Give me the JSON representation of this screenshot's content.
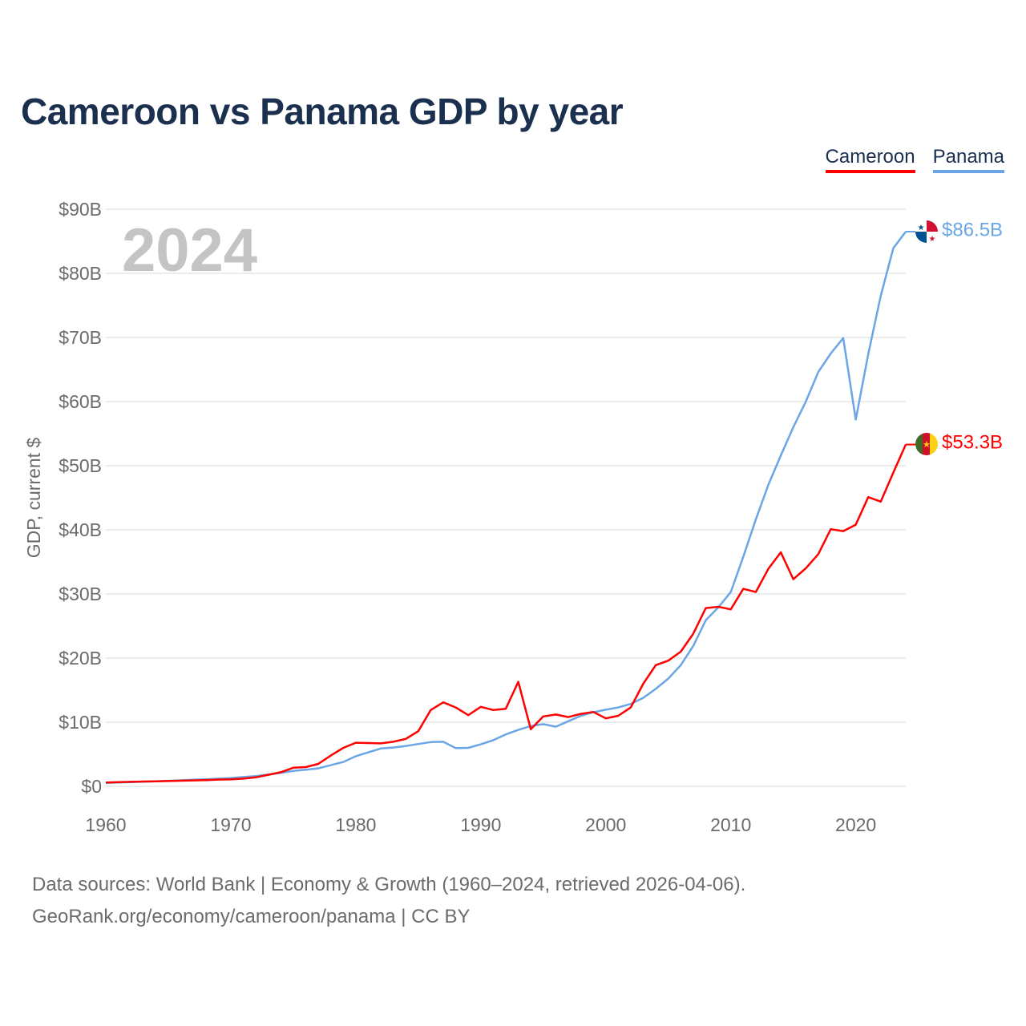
{
  "page": {
    "title": "Cameroon vs Panama GDP by year",
    "source_line1": "Data sources: World Bank | Economy & Growth (1960–2024, retrieved 2026-04-06).",
    "source_line2": "GeoRank.org/economy/cameroon/panama | CC BY"
  },
  "legend": [
    {
      "label": "Cameroon",
      "color": "#ff0000"
    },
    {
      "label": "Panama",
      "color": "#6aa6e6"
    }
  ],
  "chart_data": {
    "type": "line",
    "title": "Cameroon vs Panama GDP by year",
    "year_label": "2024",
    "xlabel": "",
    "ylabel": "GDP, current $",
    "xlim": [
      1960,
      2024
    ],
    "ylim": [
      0,
      90
    ],
    "x_ticks": [
      1960,
      1970,
      1980,
      1990,
      2000,
      2010,
      2020
    ],
    "x_tick_labels": [
      "1960",
      "1970",
      "1980",
      "1990",
      "2000",
      "2010",
      "2020"
    ],
    "y_ticks": [
      0,
      10,
      20,
      30,
      40,
      50,
      60,
      70,
      80,
      90
    ],
    "y_tick_labels": [
      "$0",
      "$10B",
      "$20B",
      "$30B",
      "$40B",
      "$50B",
      "$60B",
      "$70B",
      "$80B",
      "$90B"
    ],
    "units": "billions of current US$",
    "x": [
      1960,
      1961,
      1962,
      1963,
      1964,
      1965,
      1966,
      1967,
      1968,
      1969,
      1970,
      1971,
      1972,
      1973,
      1974,
      1975,
      1976,
      1977,
      1978,
      1979,
      1980,
      1981,
      1982,
      1983,
      1984,
      1985,
      1986,
      1987,
      1988,
      1989,
      1990,
      1991,
      1992,
      1993,
      1994,
      1995,
      1996,
      1997,
      1998,
      1999,
      2000,
      2001,
      2002,
      2003,
      2004,
      2005,
      2006,
      2007,
      2008,
      2009,
      2010,
      2011,
      2012,
      2013,
      2014,
      2015,
      2016,
      2017,
      2018,
      2019,
      2020,
      2021,
      2022,
      2023,
      2024
    ],
    "series": [
      {
        "name": "Cameroon",
        "color": "#ff0000",
        "end_label": "$53.3B",
        "flag": "cameroon-flag",
        "values": [
          0.6,
          0.65,
          0.7,
          0.75,
          0.78,
          0.82,
          0.87,
          0.92,
          0.98,
          1.05,
          1.1,
          1.2,
          1.4,
          1.8,
          2.2,
          2.9,
          3.0,
          3.5,
          4.8,
          6.0,
          6.8,
          6.75,
          6.7,
          6.95,
          7.4,
          8.6,
          11.9,
          13.1,
          12.3,
          11.1,
          12.4,
          11.9,
          12.1,
          16.3,
          8.9,
          10.9,
          11.2,
          10.8,
          11.3,
          11.6,
          10.6,
          11.0,
          12.3,
          16.0,
          18.9,
          19.6,
          21.0,
          23.8,
          27.8,
          28.0,
          27.6,
          30.8,
          30.3,
          33.9,
          36.5,
          32.3,
          34.0,
          36.2,
          40.1,
          39.8,
          40.8,
          45.1,
          44.4,
          48.9,
          53.3
        ]
      },
      {
        "name": "Panama",
        "color": "#6aa6e6",
        "end_label": "$86.5B",
        "flag": "panama-flag",
        "values": [
          0.54,
          0.6,
          0.66,
          0.72,
          0.78,
          0.86,
          0.94,
          1.02,
          1.1,
          1.2,
          1.3,
          1.45,
          1.6,
          1.85,
          2.1,
          2.4,
          2.6,
          2.8,
          3.3,
          3.8,
          4.7,
          5.3,
          5.9,
          6.05,
          6.3,
          6.6,
          6.9,
          6.95,
          5.95,
          6.0,
          6.55,
          7.2,
          8.1,
          8.8,
          9.4,
          9.7,
          9.3,
          10.15,
          11.0,
          11.55,
          11.95,
          12.3,
          12.85,
          13.8,
          15.2,
          16.8,
          18.9,
          21.9,
          25.9,
          27.9,
          30.3,
          35.8,
          41.6,
          47.0,
          51.6,
          56.0,
          60.0,
          64.6,
          67.5,
          69.9,
          57.2,
          67.4,
          76.5,
          83.9,
          86.5
        ]
      }
    ]
  }
}
